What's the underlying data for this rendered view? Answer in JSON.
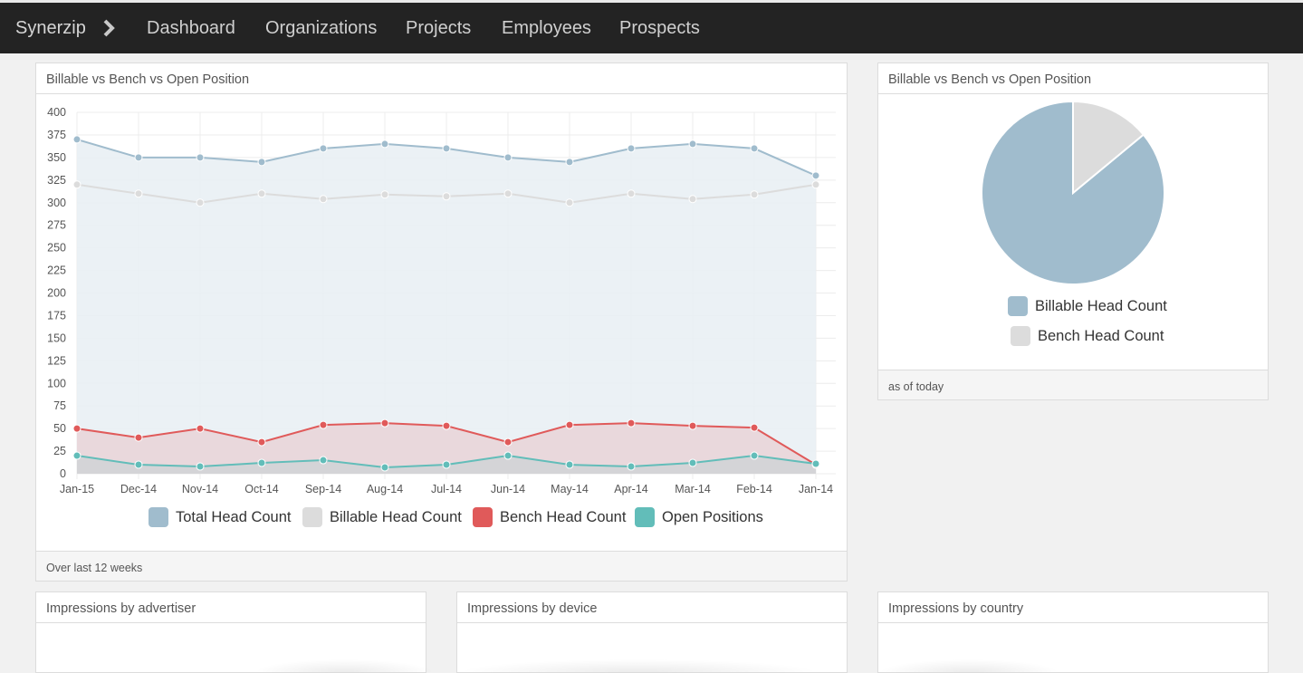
{
  "nav": {
    "brand": "Synerzip",
    "items": [
      "Dashboard",
      "Organizations",
      "Projects",
      "Employees",
      "Prospects"
    ]
  },
  "line_panel": {
    "title": "Billable vs Bench vs Open Position",
    "footer": "Over last 12 weeks"
  },
  "pie_panel": {
    "title": "Billable vs Bench vs Open Position",
    "footer": "as of today",
    "legend": [
      "Billable Head Count",
      "Bench Head Count"
    ]
  },
  "bottom_panels": {
    "advertiser": "Impressions by advertiser",
    "device": "Impressions by device",
    "country": "Impressions by country"
  },
  "colors": {
    "total": "#a0bccd",
    "billable": "#dcdcdc",
    "bench": "#e05a5a",
    "open": "#62bdb9"
  },
  "chart_data": [
    {
      "type": "line",
      "title": "Billable vs Bench vs Open Position",
      "categories": [
        "Jan-15",
        "Dec-14",
        "Nov-14",
        "Oct-14",
        "Sep-14",
        "Aug-14",
        "Jul-14",
        "Jun-14",
        "May-14",
        "Apr-14",
        "Mar-14",
        "Feb-14",
        "Jan-14"
      ],
      "ylim": [
        0,
        400
      ],
      "yticks": [
        0,
        25,
        50,
        75,
        100,
        125,
        150,
        175,
        200,
        225,
        250,
        275,
        300,
        325,
        350,
        375,
        400
      ],
      "grid": true,
      "legend_position": "bottom",
      "series": [
        {
          "name": "Total Head Count",
          "color": "#a0bccd",
          "fill": "#e9eff4",
          "values": [
            370,
            350,
            350,
            345,
            360,
            365,
            360,
            350,
            345,
            360,
            365,
            360,
            330
          ]
        },
        {
          "name": "Billable Head Count",
          "color": "#dcdcdc",
          "fill": null,
          "values": [
            320,
            310,
            300,
            310,
            304,
            309,
            307,
            310,
            300,
            310,
            304,
            309,
            320
          ]
        },
        {
          "name": "Bench Head Count",
          "color": "#e05a5a",
          "fill": "#e9d3d7",
          "values": [
            50,
            40,
            50,
            35,
            54,
            56,
            53,
            35,
            54,
            56,
            53,
            51,
            10
          ]
        },
        {
          "name": "Open Positions",
          "color": "#62bdb9",
          "fill": "#d0d4d6",
          "values": [
            20,
            10,
            8,
            12,
            15,
            7,
            10,
            20,
            10,
            8,
            12,
            20,
            11
          ]
        }
      ]
    },
    {
      "type": "pie",
      "title": "Billable vs Bench vs Open Position",
      "legend_position": "bottom",
      "slices": [
        {
          "name": "Billable Head Count",
          "value": 86,
          "color": "#a0bccd"
        },
        {
          "name": "Bench Head Count",
          "value": 14,
          "color": "#dcdcdc"
        }
      ]
    }
  ]
}
